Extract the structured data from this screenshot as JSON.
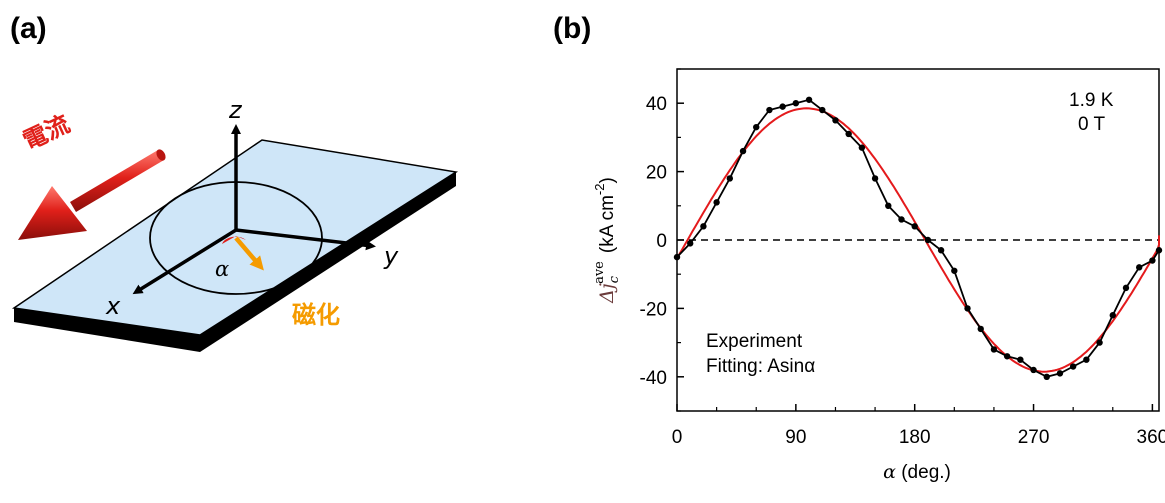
{
  "panels": {
    "a_label": "(a)",
    "b_label": "(b)"
  },
  "diagram": {
    "current_label": "電流",
    "magnetization_label": "磁化",
    "axis_x": "x",
    "axis_y": "y",
    "axis_z": "z",
    "angle_symbol": "α",
    "colors": {
      "current": "#e0201a",
      "magnetization": "#f59b00",
      "plate_top": "#cfe6f8",
      "plate_side": "#000000"
    }
  },
  "chart_data": {
    "type": "line",
    "xlabel": "α (deg.)",
    "xlabel_symbol": "α",
    "xlabel_unit": " (deg.)",
    "ylabel_symbol": "Δj",
    "ylabel_sub": "c",
    "ylabel_sup": "ave",
    "ylabel_unit": "(kA cm",
    "ylabel_unit_exp": "-2",
    "ylabel_unit_close": ")",
    "xlim": [
      0,
      365
    ],
    "ylim": [
      -50,
      50
    ],
    "xticks": [
      "0",
      "90",
      "180",
      "270",
      "360"
    ],
    "yticks": [
      "40",
      "20",
      "0",
      "-20",
      "-40"
    ],
    "conditions": [
      "1.9 K",
      "0 T"
    ],
    "zero_line": "dashed",
    "series": [
      {
        "name": "Experiment",
        "color": "#000000",
        "markers": true,
        "x": [
          0,
          10,
          20,
          30,
          40,
          50,
          60,
          70,
          80,
          90,
          100,
          110,
          120,
          130,
          140,
          150,
          160,
          170,
          180,
          190,
          200,
          210,
          220,
          230,
          240,
          250,
          260,
          270,
          280,
          290,
          300,
          310,
          320,
          330,
          340,
          350,
          360,
          370
        ],
        "y": [
          -5,
          -1,
          4,
          11,
          18,
          26,
          33,
          38,
          39,
          40,
          41,
          38,
          35,
          31,
          27,
          18,
          10,
          6,
          4,
          0,
          -3,
          -9,
          -20,
          -26,
          -32,
          -34,
          -35,
          -38,
          -40,
          -39,
          -37,
          -35,
          -30,
          -22,
          -14,
          -8,
          -6,
          -3
        ]
      },
      {
        "name": "Fitting: Asinα",
        "color": "#e41a1c",
        "amplitude": 38.5,
        "phase_deg": 8,
        "x_start": -5,
        "x_end": 370
      }
    ]
  }
}
